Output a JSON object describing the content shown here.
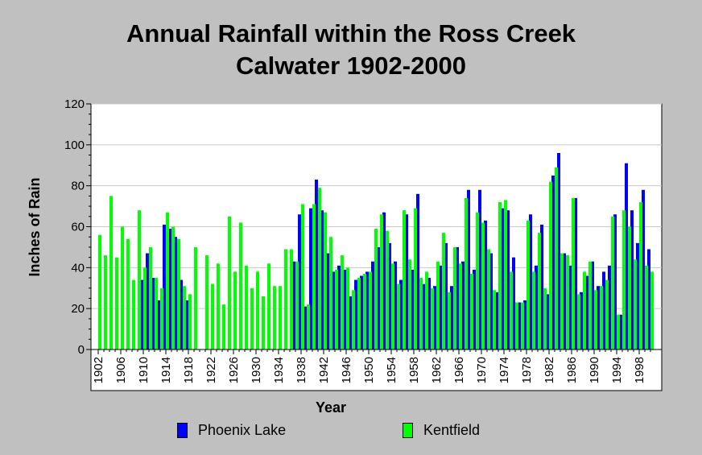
{
  "chart_data": {
    "type": "bar",
    "title_line1": "Annual Rainfall within the Ross Creek",
    "title_line2": "Calwater 1902-2000",
    "xlabel": "Year",
    "ylabel": "Inches of Rain",
    "ylim": [
      0,
      120
    ],
    "yticks": [
      0,
      20,
      40,
      60,
      80,
      100,
      120
    ],
    "xtick_labels": [
      "1902",
      "1906",
      "1910",
      "1914",
      "1918",
      "1922",
      "1926",
      "1930",
      "1934",
      "1938",
      "1942",
      "1946",
      "1950",
      "1954",
      "1958",
      "1962",
      "1966",
      "1970",
      "1974",
      "1978",
      "1982",
      "1986",
      "1990",
      "1994",
      "1998"
    ],
    "x_start": 1902,
    "x_end": 2000,
    "grid": "horizontal",
    "legend_placement": "bottom",
    "series": [
      {
        "name": "Phoenix Lake",
        "color": "#0000ff",
        "values": [
          null,
          null,
          null,
          null,
          null,
          null,
          null,
          null,
          34,
          47,
          35,
          24,
          61,
          59,
          55,
          34,
          24,
          null,
          null,
          null,
          null,
          null,
          null,
          null,
          null,
          null,
          null,
          null,
          null,
          null,
          null,
          null,
          null,
          null,
          null,
          43,
          66,
          21,
          69,
          83,
          68,
          47,
          38,
          41,
          39,
          26,
          34,
          36,
          38,
          43,
          50,
          67,
          52,
          43,
          34,
          66,
          39,
          76,
          32,
          35,
          31,
          41,
          52,
          31,
          50,
          43,
          78,
          39,
          78,
          63,
          47,
          28,
          69,
          68,
          45,
          23,
          24,
          66,
          41,
          61,
          27,
          85,
          96,
          47,
          41,
          74,
          28,
          36,
          43,
          31,
          38,
          41,
          66,
          17,
          91,
          68,
          52,
          78,
          49
        ],
        "unit_note": ""
      },
      {
        "name": "Kentfield",
        "color": "#00ff00",
        "values": [
          56,
          46,
          75,
          45,
          60,
          54,
          34,
          68,
          40,
          50,
          35,
          30,
          67,
          60,
          54,
          31,
          27,
          50,
          null,
          46,
          32,
          42,
          22,
          65,
          38,
          62,
          41,
          30,
          38,
          26,
          42,
          31,
          31,
          49,
          49,
          43,
          71,
          22,
          71,
          79,
          67,
          55,
          39,
          46,
          40,
          29,
          35,
          37,
          38,
          59,
          66,
          58,
          42,
          32,
          68,
          44,
          69,
          35,
          38,
          30,
          43,
          57,
          28,
          50,
          42,
          74,
          37,
          67,
          62,
          49,
          29,
          72,
          73,
          38,
          23,
          23,
          63,
          38,
          57,
          30,
          82,
          89,
          47,
          46,
          74,
          27,
          38,
          43,
          29,
          31,
          34,
          65,
          17,
          68,
          60,
          44,
          72,
          41,
          38
        ]
      }
    ]
  },
  "legend": {
    "items": [
      {
        "label": "Phoenix Lake",
        "color": "#0000ff"
      },
      {
        "label": "Kentfield",
        "color": "#00ff00"
      }
    ]
  }
}
